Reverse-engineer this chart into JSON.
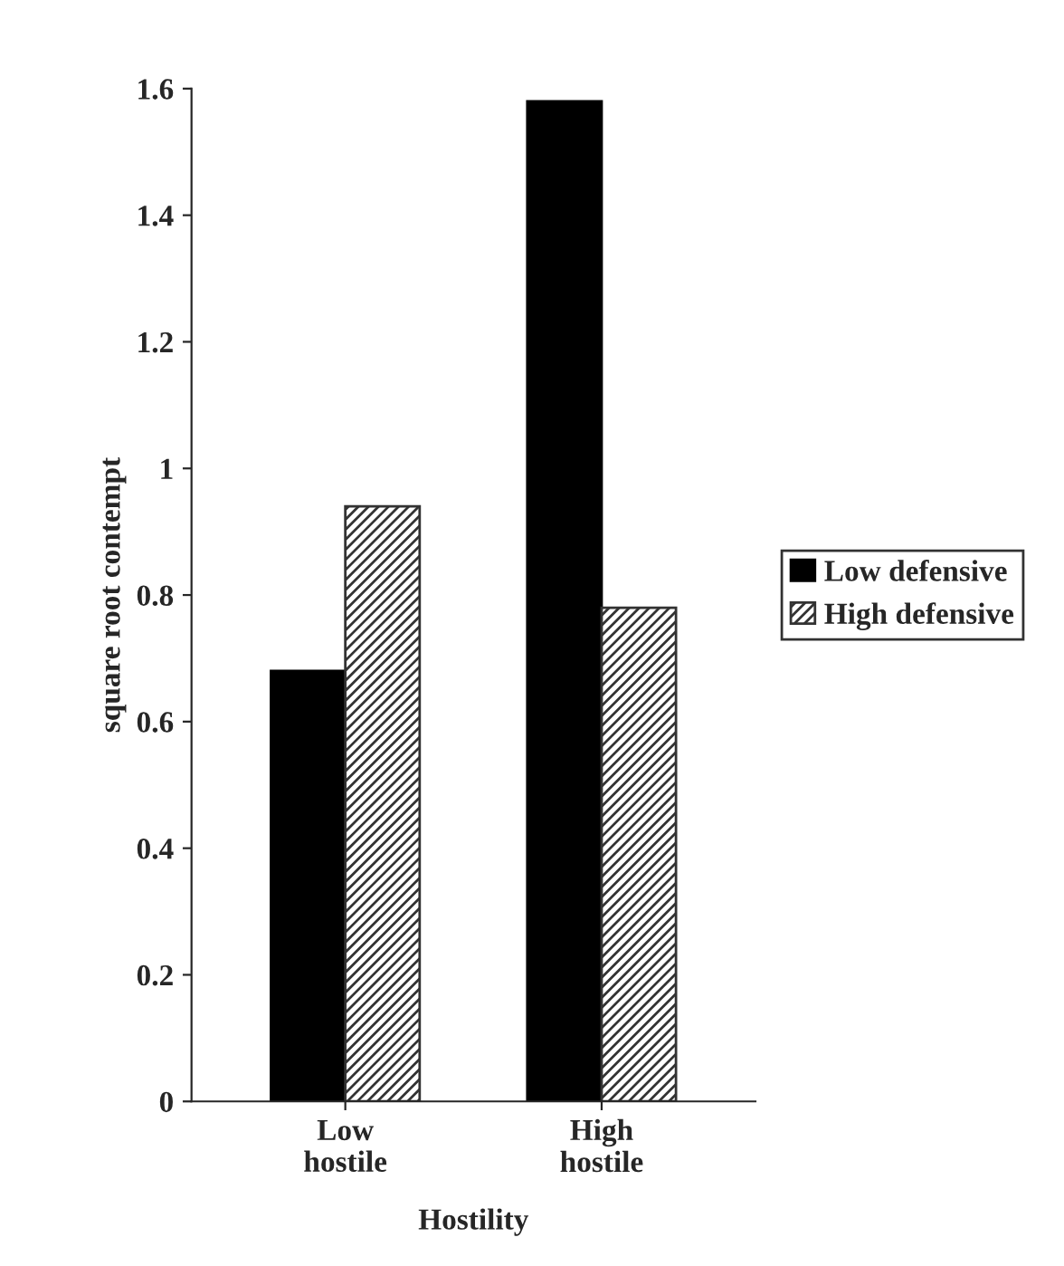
{
  "chart_data": {
    "type": "bar",
    "xlabel": "Hostility",
    "ylabel": "square root contempt",
    "categories": [
      "Low\nhostile",
      "High\nhostile"
    ],
    "series": [
      {
        "name": "Low defensive",
        "color": "#000000",
        "values": [
          0.68,
          1.58
        ]
      },
      {
        "name": "High defensive",
        "color": "#333333",
        "values": [
          0.94,
          0.78
        ]
      }
    ],
    "ylim": [
      0,
      1.6
    ],
    "yticks": [
      0,
      0.2,
      0.4,
      0.6,
      0.8,
      1,
      1.2,
      1.4,
      1.6
    ],
    "grid": false,
    "legend": "right"
  }
}
